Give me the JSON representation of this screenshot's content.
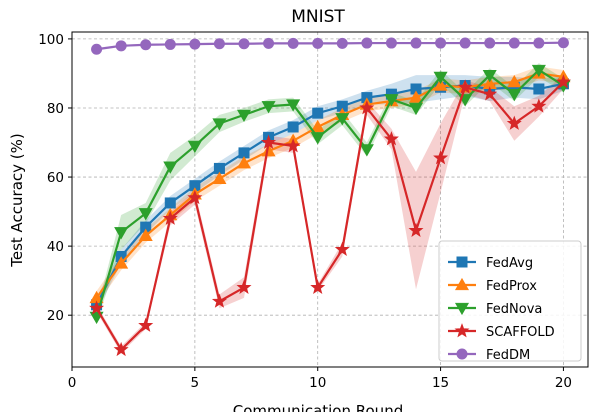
{
  "chart_data": {
    "type": "line",
    "title": "MNIST",
    "xlabel": "Communication Round",
    "ylabel": "Test Accuracy (%)",
    "xlim": [
      0,
      21
    ],
    "ylim": [
      5,
      102
    ],
    "xticks": [
      0,
      5,
      10,
      15,
      20
    ],
    "yticks": [
      20,
      40,
      60,
      80,
      100
    ],
    "grid": true,
    "legend_position": "lower-right",
    "x": [
      1,
      2,
      3,
      4,
      5,
      6,
      7,
      8,
      9,
      10,
      11,
      12,
      13,
      14,
      15,
      16,
      17,
      18,
      19,
      20
    ],
    "series": [
      {
        "name": "FedAvg",
        "color": "#1f77b4",
        "marker": "square",
        "values": [
          23,
          37,
          45.5,
          52.5,
          57.5,
          62.5,
          67,
          71.5,
          74.5,
          78.5,
          80.5,
          83,
          84,
          85.5,
          86,
          86.5,
          85.5,
          86,
          85.5,
          87
        ],
        "band": [
          2,
          2,
          2,
          2,
          2,
          2,
          2,
          2,
          2,
          2,
          2,
          2,
          3,
          4,
          3.5,
          3,
          3.5,
          3,
          3,
          2
        ]
      },
      {
        "name": "FedProx",
        "color": "#ff7f0e",
        "marker": "triangle-up",
        "values": [
          25,
          35,
          43,
          49,
          55,
          59.5,
          64,
          67.5,
          70.5,
          74.5,
          78,
          81,
          82,
          83,
          86.5,
          86,
          87,
          87.5,
          90,
          89
        ],
        "band": [
          2,
          2,
          2,
          2,
          2,
          2,
          2,
          2,
          2,
          2,
          2,
          2,
          2,
          2,
          2,
          2,
          2,
          2,
          2,
          2
        ]
      },
      {
        "name": "FedNova",
        "color": "#2ca02c",
        "marker": "triangle-down",
        "values": [
          19.5,
          44,
          49.5,
          63,
          69,
          75.5,
          78,
          80.5,
          81,
          71.5,
          77,
          68,
          82.5,
          80,
          89,
          82.5,
          89.5,
          84,
          91,
          86.5
        ],
        "band": [
          1.5,
          5,
          3,
          4,
          3,
          2.5,
          2,
          2,
          2,
          2,
          2,
          2,
          2,
          2,
          2,
          2,
          2,
          2,
          2,
          2
        ]
      },
      {
        "name": "SCAFFOLD",
        "color": "#d62728",
        "marker": "star",
        "values": [
          22,
          10,
          17,
          48,
          54,
          24,
          28,
          70,
          69,
          28,
          39,
          80,
          71,
          44.5,
          65.5,
          86,
          84,
          75.5,
          80.5,
          87.5
        ],
        "band": [
          1,
          1,
          1,
          2,
          2,
          2,
          3,
          2,
          2,
          1,
          2,
          2,
          3,
          17,
          10,
          2,
          2,
          5,
          3,
          2
        ]
      },
      {
        "name": "FedDM",
        "color": "#9467bd",
        "marker": "circle",
        "values": [
          97,
          98,
          98.3,
          98.4,
          98.5,
          98.6,
          98.6,
          98.7,
          98.7,
          98.7,
          98.7,
          98.8,
          98.8,
          98.8,
          98.8,
          98.8,
          98.8,
          98.8,
          98.8,
          98.9
        ],
        "band": [
          0.4,
          0.3,
          0.3,
          0.3,
          0.3,
          0.3,
          0.3,
          0.3,
          0.3,
          0.3,
          0.3,
          0.3,
          0.3,
          0.3,
          0.3,
          0.3,
          0.3,
          0.3,
          0.3,
          0.3
        ]
      }
    ]
  }
}
